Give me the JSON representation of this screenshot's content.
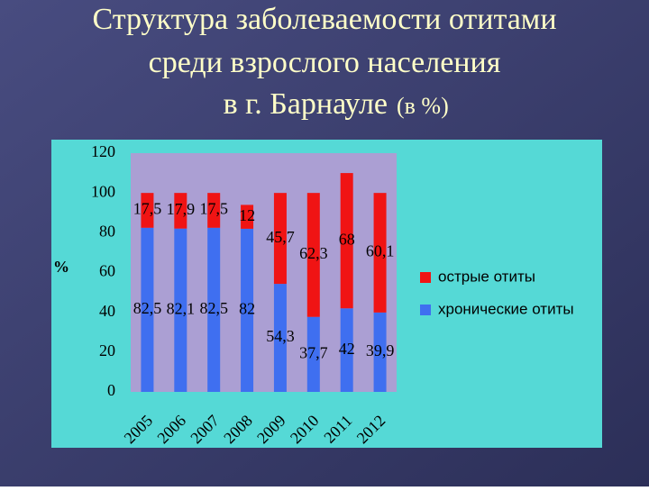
{
  "chart_data": {
    "type": "stacked-bar",
    "title": [
      "Структура заболеваемости отитами",
      "среди взрослого населения",
      "в г. Барнауле"
    ],
    "subtitle": "(в %)",
    "y_label": "%",
    "categories": [
      "2005",
      "2006",
      "2007",
      "2008",
      "2009",
      "2010",
      "2011",
      "2012"
    ],
    "series": [
      {
        "name": "хронические отиты",
        "color": "#3f6ff0",
        "values": [
          82.5,
          82.1,
          82.5,
          82,
          54.3,
          37.7,
          42,
          39.9
        ],
        "value_labels": [
          "82,5",
          "82,1",
          "82,5",
          "82",
          "54,3",
          "37,7",
          "42",
          "39,9"
        ]
      },
      {
        "name": "острые отиты",
        "color": "#f01414",
        "values": [
          17.5,
          17.9,
          17.5,
          12,
          45.7,
          62.3,
          68,
          60.1
        ],
        "value_labels": [
          "17,5",
          "17,9",
          "17,5",
          "12",
          "45,7",
          "62,3",
          "68",
          "60,1"
        ]
      }
    ],
    "ylim": [
      0,
      120
    ],
    "yticks": [
      0,
      20,
      40,
      60,
      80,
      100,
      120
    ]
  }
}
